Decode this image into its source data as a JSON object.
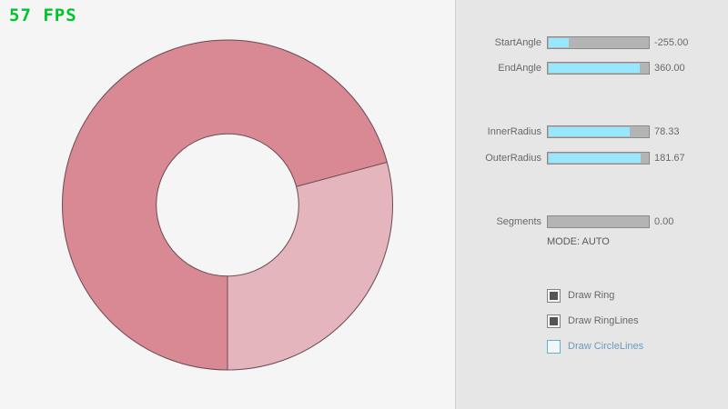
{
  "fps_label": "57 FPS",
  "colors": {
    "fps_green": "#00c42c",
    "canvas_bg": "#f5f5f5",
    "panel_bg": "#e6e6e6",
    "accent_fill": "#97e8ff",
    "ring_dark": "#d98994",
    "ring_light": "#e4b5bc",
    "ring_line": "#6b4a50",
    "focus_border": "#5bb2d9",
    "focus_text": "#6c9bbc"
  },
  "sliders": [
    {
      "label": "StartAngle",
      "value": "-255.00",
      "fill_pct": 20
    },
    {
      "label": "EndAngle",
      "value": "360.00",
      "fill_pct": 90
    },
    {
      "label": "InnerRadius",
      "value": "78.33",
      "fill_pct": 80
    },
    {
      "label": "OuterRadius",
      "value": "181.67",
      "fill_pct": 91
    },
    {
      "label": "Segments",
      "value": "0.00",
      "fill_pct": 0
    }
  ],
  "mode_label": "MODE: AUTO",
  "checkboxes": [
    {
      "label": "Draw Ring",
      "checked": true
    },
    {
      "label": "Draw RingLines",
      "checked": true
    },
    {
      "label": "Draw CircleLines",
      "checked": false
    }
  ]
}
